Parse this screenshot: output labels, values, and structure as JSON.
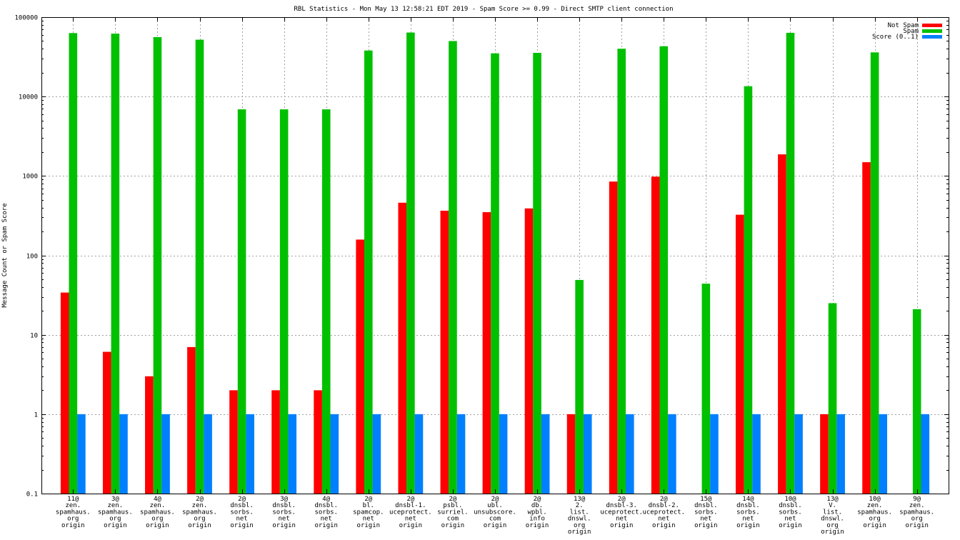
{
  "chart_data": {
    "type": "bar",
    "title": "RBL Statistics - Mon May 13 12:58:21 EDT 2019 - Spam Score >= 0.99 - Direct SMTP client connection",
    "ylabel": "Message Count or Spam Score",
    "xlabel": "",
    "yscale": "log",
    "ylim": [
      0.1,
      100000
    ],
    "y_ticks": [
      "0.1",
      "1",
      "10",
      "100",
      "1000",
      "10000",
      "100000"
    ],
    "grid": true,
    "legend_position": "top-right",
    "categories": [
      [
        "11@",
        "zen.",
        "spamhaus.",
        "org",
        "origin"
      ],
      [
        "3@",
        "zen.",
        "spamhaus.",
        "org",
        "origin"
      ],
      [
        "4@",
        "zen.",
        "spamhaus.",
        "org",
        "origin"
      ],
      [
        "2@",
        "zen.",
        "spamhaus.",
        "org",
        "origin"
      ],
      [
        "2@",
        "dnsbl.",
        "sorbs.",
        "net",
        "origin"
      ],
      [
        "3@",
        "dnsbl.",
        "sorbs.",
        "net",
        "origin"
      ],
      [
        "4@",
        "dnsbl.",
        "sorbs.",
        "net",
        "origin"
      ],
      [
        "2@",
        "bl.",
        "spamcop.",
        "net",
        "origin"
      ],
      [
        "2@",
        "dnsbl-1.",
        "uceprotect.",
        "net",
        "origin"
      ],
      [
        "2@",
        "psbl.",
        "surriel.",
        "com",
        "origin"
      ],
      [
        "2@",
        "ubl.",
        "unsubscore.",
        "com",
        "origin"
      ],
      [
        "2@",
        "db.",
        "wpbl.",
        "info",
        "origin"
      ],
      [
        "13@",
        "2.",
        "list.",
        "dnswl.",
        "org",
        "origin"
      ],
      [
        "2@",
        "dnsbl-3.",
        "uceprotect.",
        "net",
        "origin"
      ],
      [
        "2@",
        "dnsbl-2.",
        "uceprotect.",
        "net",
        "origin"
      ],
      [
        "15@",
        "dnsbl.",
        "sorbs.",
        "net",
        "origin"
      ],
      [
        "14@",
        "dnsbl.",
        "sorbs.",
        "net",
        "origin"
      ],
      [
        "10@",
        "dnsbl.",
        "sorbs.",
        "net",
        "origin"
      ],
      [
        "13@",
        "V.",
        "list.",
        "dnswl.",
        "org",
        "origin"
      ],
      [
        "10@",
        "zen.",
        "spamhaus.",
        "org",
        "origin"
      ],
      [
        "9@",
        "zen.",
        "spamhaus.",
        "org",
        "origin"
      ]
    ],
    "series": [
      {
        "name": "Not Spam",
        "color": "#ff0000",
        "values": [
          34,
          6.1,
          3,
          7,
          2,
          2,
          2,
          158,
          460,
          365,
          350,
          390,
          1,
          850,
          980,
          null,
          325,
          1870,
          1,
          1490,
          null
        ]
      },
      {
        "name": "Spam",
        "color": "#00c000",
        "values": [
          63000,
          62000,
          56000,
          52000,
          6900,
          6900,
          6900,
          38000,
          64000,
          50000,
          35000,
          35500,
          49,
          40000,
          43000,
          44,
          13500,
          63500,
          25,
          36000,
          21
        ]
      },
      {
        "name": "Score (0..1)",
        "color": "#0080ff",
        "values": [
          1,
          1,
          1,
          1,
          1,
          1,
          1,
          1,
          1,
          1,
          1,
          1,
          1,
          1,
          1,
          1,
          1,
          1,
          1,
          1,
          1
        ]
      }
    ]
  }
}
